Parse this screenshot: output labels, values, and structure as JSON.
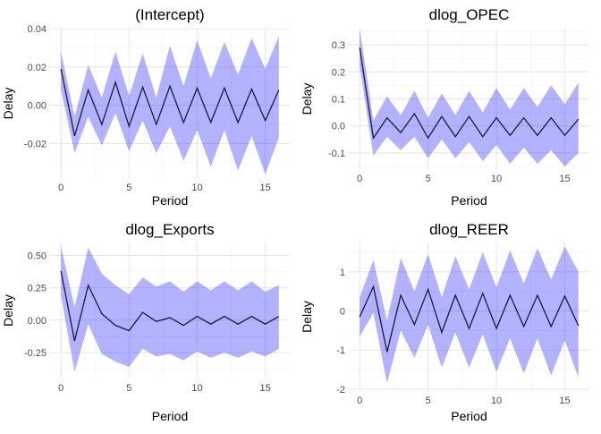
{
  "chart_data": [
    {
      "type": "line",
      "title": "(Intercept)",
      "xlabel": "Period",
      "ylabel": "Delay",
      "xlim": [
        -0.8,
        16.8
      ],
      "ylim": [
        -0.038,
        0.04
      ],
      "xticks": [
        0,
        5,
        10,
        15
      ],
      "yticks": [
        -0.02,
        0.0,
        0.02,
        0.04
      ],
      "ytick_labels": [
        "-0.02",
        "0.00",
        "0.02",
        "0.04"
      ],
      "x": [
        0,
        1,
        2,
        3,
        4,
        5,
        6,
        7,
        8,
        9,
        10,
        11,
        12,
        13,
        14,
        15,
        16
      ],
      "series": [
        {
          "values": [
            0.019,
            -0.016,
            0.008,
            -0.01,
            0.012,
            -0.011,
            0.0095,
            -0.01,
            0.01,
            -0.009,
            0.009,
            -0.009,
            0.009,
            -0.009,
            0.0085,
            -0.008,
            0.008
          ]
        }
      ],
      "band": {
        "lower": [
          0.008,
          -0.025,
          -0.006,
          -0.021,
          -0.004,
          -0.024,
          -0.008,
          -0.025,
          -0.011,
          -0.029,
          -0.013,
          -0.032,
          -0.013,
          -0.034,
          -0.016,
          -0.036,
          -0.017
        ],
        "upper": [
          0.028,
          -0.006,
          0.021,
          0.004,
          0.028,
          0.005,
          0.027,
          0.004,
          0.031,
          0.01,
          0.034,
          0.014,
          0.033,
          0.016,
          0.035,
          0.019,
          0.036
        ]
      },
      "grid": true
    },
    {
      "type": "line",
      "title": "dlog_OPEC",
      "xlabel": "Period",
      "ylabel": "Delay",
      "xlim": [
        -0.8,
        16.8
      ],
      "ylim": [
        -0.16,
        0.36
      ],
      "xticks": [
        0,
        5,
        10,
        15
      ],
      "yticks": [
        -0.1,
        0.0,
        0.1,
        0.2,
        0.3
      ],
      "ytick_labels": [
        "-0.1",
        "0.0",
        "0.1",
        "0.2",
        "0.3"
      ],
      "x": [
        0,
        1,
        2,
        3,
        4,
        5,
        6,
        7,
        8,
        9,
        10,
        11,
        12,
        13,
        14,
        15,
        16
      ],
      "series": [
        {
          "values": [
            0.29,
            -0.045,
            0.03,
            -0.025,
            0.045,
            -0.045,
            0.035,
            -0.04,
            0.035,
            -0.04,
            0.03,
            -0.035,
            0.03,
            -0.035,
            0.03,
            -0.035,
            0.025
          ]
        }
      ],
      "band": {
        "lower": [
          0.22,
          -0.11,
          -0.04,
          -0.09,
          -0.04,
          -0.12,
          -0.05,
          -0.12,
          -0.06,
          -0.13,
          -0.07,
          -0.14,
          -0.08,
          -0.14,
          -0.09,
          -0.15,
          -0.1
        ],
        "upper": [
          0.36,
          0.02,
          0.11,
          0.04,
          0.13,
          0.03,
          0.12,
          0.04,
          0.13,
          0.05,
          0.14,
          0.06,
          0.14,
          0.07,
          0.15,
          0.08,
          0.16
        ]
      },
      "grid": true
    },
    {
      "type": "line",
      "title": "dlog_Exports",
      "xlabel": "Period",
      "ylabel": "Delay",
      "xlim": [
        -0.8,
        16.8
      ],
      "ylim": [
        -0.45,
        0.6
      ],
      "xticks": [
        0,
        5,
        10,
        15
      ],
      "yticks": [
        -0.25,
        0.0,
        0.25,
        0.5
      ],
      "ytick_labels": [
        "-0.25",
        "0.00",
        "0.25",
        "0.50"
      ],
      "x": [
        0,
        1,
        2,
        3,
        4,
        5,
        6,
        7,
        8,
        9,
        10,
        11,
        12,
        13,
        14,
        15,
        16
      ],
      "series": [
        {
          "values": [
            0.38,
            -0.16,
            0.27,
            0.05,
            -0.04,
            -0.08,
            0.06,
            -0.01,
            0.02,
            -0.04,
            0.03,
            -0.03,
            0.03,
            -0.03,
            0.03,
            -0.03,
            0.03
          ]
        }
      ],
      "band": {
        "lower": [
          0.19,
          -0.4,
          -0.03,
          -0.26,
          -0.32,
          -0.36,
          -0.22,
          -0.28,
          -0.26,
          -0.31,
          -0.24,
          -0.29,
          -0.25,
          -0.29,
          -0.24,
          -0.28,
          -0.22
        ],
        "upper": [
          0.57,
          0.1,
          0.56,
          0.36,
          0.27,
          0.2,
          0.33,
          0.26,
          0.3,
          0.22,
          0.3,
          0.23,
          0.3,
          0.23,
          0.3,
          0.22,
          0.27
        ]
      },
      "grid": true
    },
    {
      "type": "line",
      "title": "dlog_REER",
      "xlabel": "Period",
      "ylabel": "Delay",
      "xlim": [
        -0.8,
        16.8
      ],
      "ylim": [
        -2.05,
        1.75
      ],
      "xticks": [
        0,
        5,
        10,
        15
      ],
      "yticks": [
        -2,
        -1,
        0,
        1
      ],
      "ytick_labels": [
        "-2",
        "-1",
        "0",
        "1"
      ],
      "x": [
        0,
        1,
        2,
        3,
        4,
        5,
        6,
        7,
        8,
        9,
        10,
        11,
        12,
        13,
        14,
        15,
        16
      ],
      "series": [
        {
          "values": [
            -0.15,
            0.62,
            -1.05,
            0.4,
            -0.35,
            0.55,
            -0.55,
            0.4,
            -0.45,
            0.45,
            -0.45,
            0.4,
            -0.4,
            0.4,
            -0.4,
            0.38,
            -0.38
          ]
        }
      ],
      "band": {
        "lower": [
          -0.65,
          -0.05,
          -1.85,
          -0.5,
          -1.2,
          -0.35,
          -1.45,
          -0.55,
          -1.45,
          -0.6,
          -1.55,
          -0.7,
          -1.6,
          -0.7,
          -1.65,
          -0.75,
          -1.7
        ],
        "upper": [
          0.35,
          1.3,
          -0.25,
          1.35,
          0.5,
          1.45,
          0.35,
          1.4,
          0.55,
          1.5,
          0.6,
          1.55,
          0.7,
          1.6,
          0.8,
          1.65,
          1.0
        ]
      },
      "grid": true
    }
  ],
  "style": {
    "line_color": "#1a1a3a",
    "band_color": "#0000ff",
    "band_opacity": 0.3,
    "grid_major": "#e8e8e8",
    "grid_minor": "#f3f3f3"
  }
}
